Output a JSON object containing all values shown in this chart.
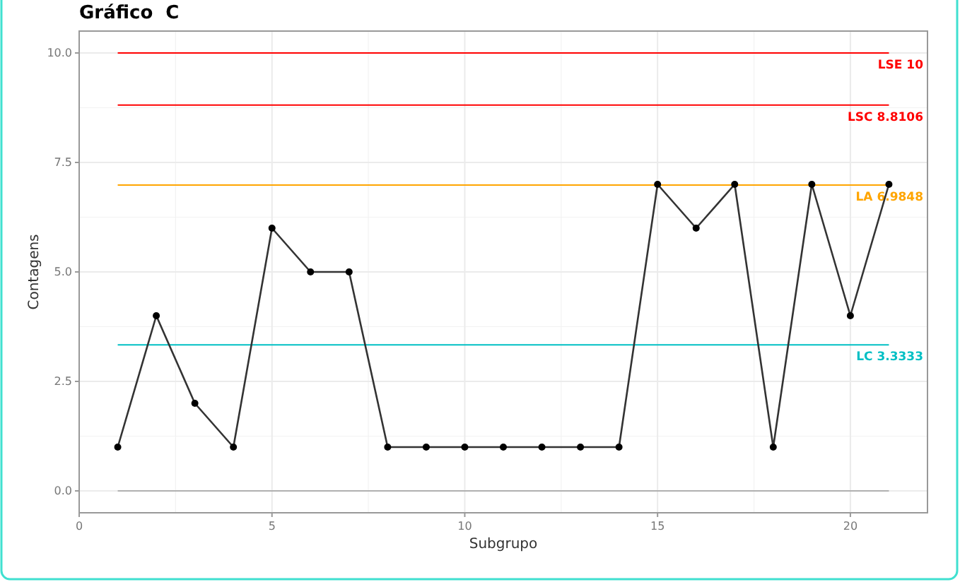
{
  "chart_data": {
    "type": "line",
    "title": "Gráfico  C",
    "xlabel": "Subgrupo",
    "ylabel": "Contagens",
    "x": [
      1,
      2,
      3,
      4,
      5,
      6,
      7,
      8,
      9,
      10,
      11,
      12,
      13,
      14,
      15,
      16,
      17,
      18,
      19,
      20,
      21
    ],
    "series": [
      {
        "color": "#333333",
        "values": [
          1,
          4,
          2,
          1,
          6,
          5,
          5,
          1,
          1,
          1,
          1,
          1,
          1,
          1,
          7,
          6,
          7,
          1,
          7,
          4,
          7
        ]
      }
    ],
    "xlim": [
      0,
      22
    ],
    "xticks": [
      0,
      5,
      10,
      15,
      20
    ],
    "ylim": [
      -0.5,
      10.5
    ],
    "yticks": [
      {
        "value": 0,
        "label": "0.0"
      },
      {
        "value": 2.5,
        "label": "2.5"
      },
      {
        "value": 5,
        "label": "5.0"
      },
      {
        "value": 7.5,
        "label": "7.5"
      },
      {
        "value": 10,
        "label": "10.0"
      }
    ],
    "ref_lines": [
      {
        "axis": "y",
        "value": 10,
        "label": "LSE 10",
        "color": "#ff0000"
      },
      {
        "axis": "y",
        "value": 8.8106,
        "label": "LSC 8.8106",
        "color": "#ff0000"
      },
      {
        "axis": "y",
        "value": 6.9848,
        "label": "LA 6.9848",
        "color": "#ffa500"
      },
      {
        "axis": "y",
        "value": 3.3333,
        "label": "LC 3.3333",
        "color": "#00bfc4"
      },
      {
        "axis": "y",
        "value": 0,
        "color": "#b0b0b0"
      }
    ],
    "grid": true,
    "marker": "circle",
    "line_style": "solid"
  }
}
